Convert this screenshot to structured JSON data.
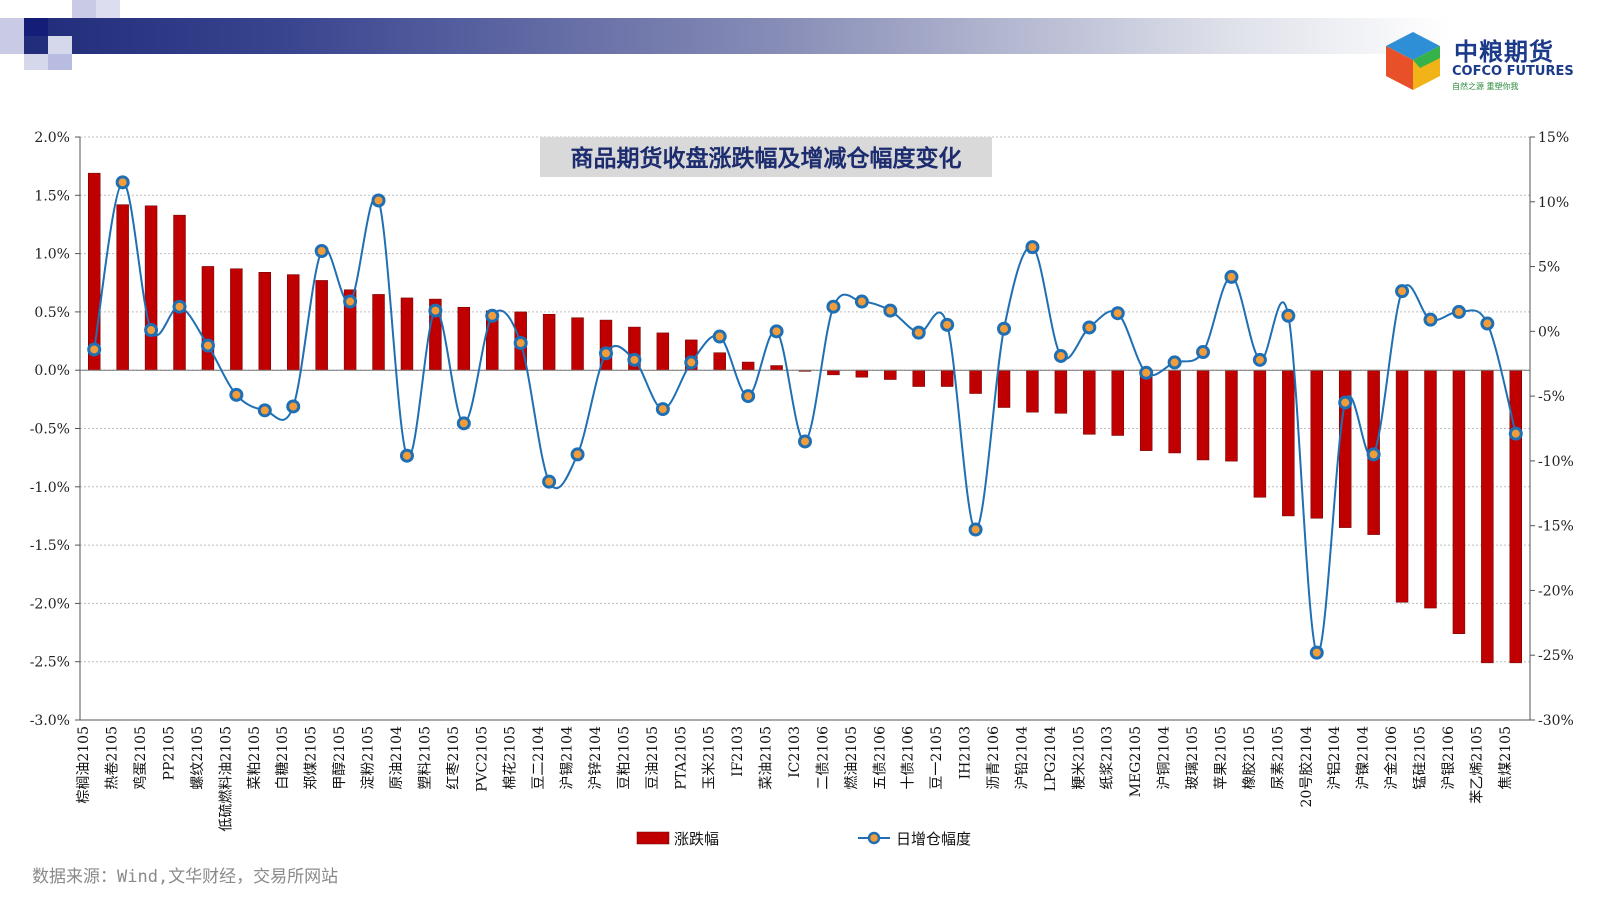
{
  "brand": {
    "name_cn": "中粮期货",
    "name_en": "COFCO FUTURES",
    "tagline": "自然之源  重塑你我",
    "colors": {
      "band": "#1f2a78",
      "logo_text": "#1c3a8a"
    }
  },
  "source": "数据来源：Wind,文华财经，交易所网站",
  "chart_data": {
    "type": "bar+line",
    "title": "商品期货收盘涨跌幅及增减仓幅度变化",
    "categories": [
      "棕榈油2105",
      "热卷2105",
      "鸡蛋2105",
      "PP2105",
      "螺纹2105",
      "低硫燃料油2105",
      "菜粕2105",
      "白糖2105",
      "郑煤2105",
      "甲醇2105",
      "淀粉2105",
      "原油2104",
      "塑料2105",
      "红枣2105",
      "PVC2105",
      "棉花2105",
      "豆二2104",
      "沪锡2104",
      "沪锌2104",
      "豆粕2105",
      "豆油2105",
      "PTA2105",
      "玉米2105",
      "IF2103",
      "菜油2105",
      "IC2103",
      "二债2106",
      "燃油2105",
      "五债2106",
      "十债2106",
      "豆一2105",
      "IH2103",
      "沥青2106",
      "沪铅2104",
      "LPG2104",
      "粳米2105",
      "纸浆2103",
      "MEG2105",
      "沪铜2104",
      "玻璃2105",
      "苹果2105",
      "橡胶2105",
      "尿素2105",
      "20号胶2104",
      "沪铝2104",
      "沪镍2104",
      "沪金2106",
      "锰硅2105",
      "沪银2106",
      "苯乙烯2105",
      "焦煤2105"
    ],
    "series": [
      {
        "name": "涨跌幅",
        "kind": "bar",
        "axis": "left",
        "color": "#c00000",
        "unit": "%",
        "values": [
          1.69,
          1.42,
          1.41,
          1.33,
          0.89,
          0.87,
          0.84,
          0.82,
          0.77,
          0.69,
          0.65,
          0.62,
          0.61,
          0.54,
          0.51,
          0.5,
          0.48,
          0.45,
          0.43,
          0.37,
          0.32,
          0.26,
          0.15,
          0.07,
          0.04,
          -0.01,
          -0.04,
          -0.06,
          -0.08,
          -0.14,
          -0.14,
          -0.2,
          -0.32,
          -0.36,
          -0.37,
          -0.55,
          -0.56,
          -0.69,
          -0.71,
          -0.77,
          -0.78,
          -1.09,
          -1.25,
          -1.27,
          -1.35,
          -1.41,
          -1.99,
          -2.04,
          -2.26,
          -2.51,
          -2.51
        ]
      },
      {
        "name": "日增仓幅度",
        "kind": "line",
        "axis": "right",
        "color": "#1f6fb4",
        "marker_fill": "#f39c3a",
        "unit": "%",
        "values": [
          -1.4,
          11.5,
          0.1,
          1.9,
          -1.1,
          -4.9,
          -6.1,
          -5.8,
          6.2,
          2.3,
          10.1,
          -9.6,
          1.6,
          -7.1,
          1.2,
          -0.9,
          -11.6,
          -9.5,
          -1.7,
          -2.2,
          -6.0,
          -2.4,
          -0.4,
          -5.0,
          0.0,
          -8.5,
          1.9,
          2.3,
          1.6,
          -0.1,
          0.5,
          -15.3,
          0.2,
          6.5,
          -1.9,
          0.3,
          1.4,
          -3.2,
          -2.4,
          -1.6,
          4.2,
          -2.2,
          1.2,
          -24.8,
          -5.5,
          -9.5,
          3.1,
          0.9,
          1.5,
          0.6,
          -7.9
        ]
      }
    ],
    "y_left": {
      "min": -3.0,
      "max": 2.0,
      "step": 0.5,
      "tick_format": "0.0%"
    },
    "y_right": {
      "min": -30,
      "max": 15,
      "step": 5,
      "tick_format": "0%"
    },
    "legend_position": "bottom",
    "grid": true
  }
}
